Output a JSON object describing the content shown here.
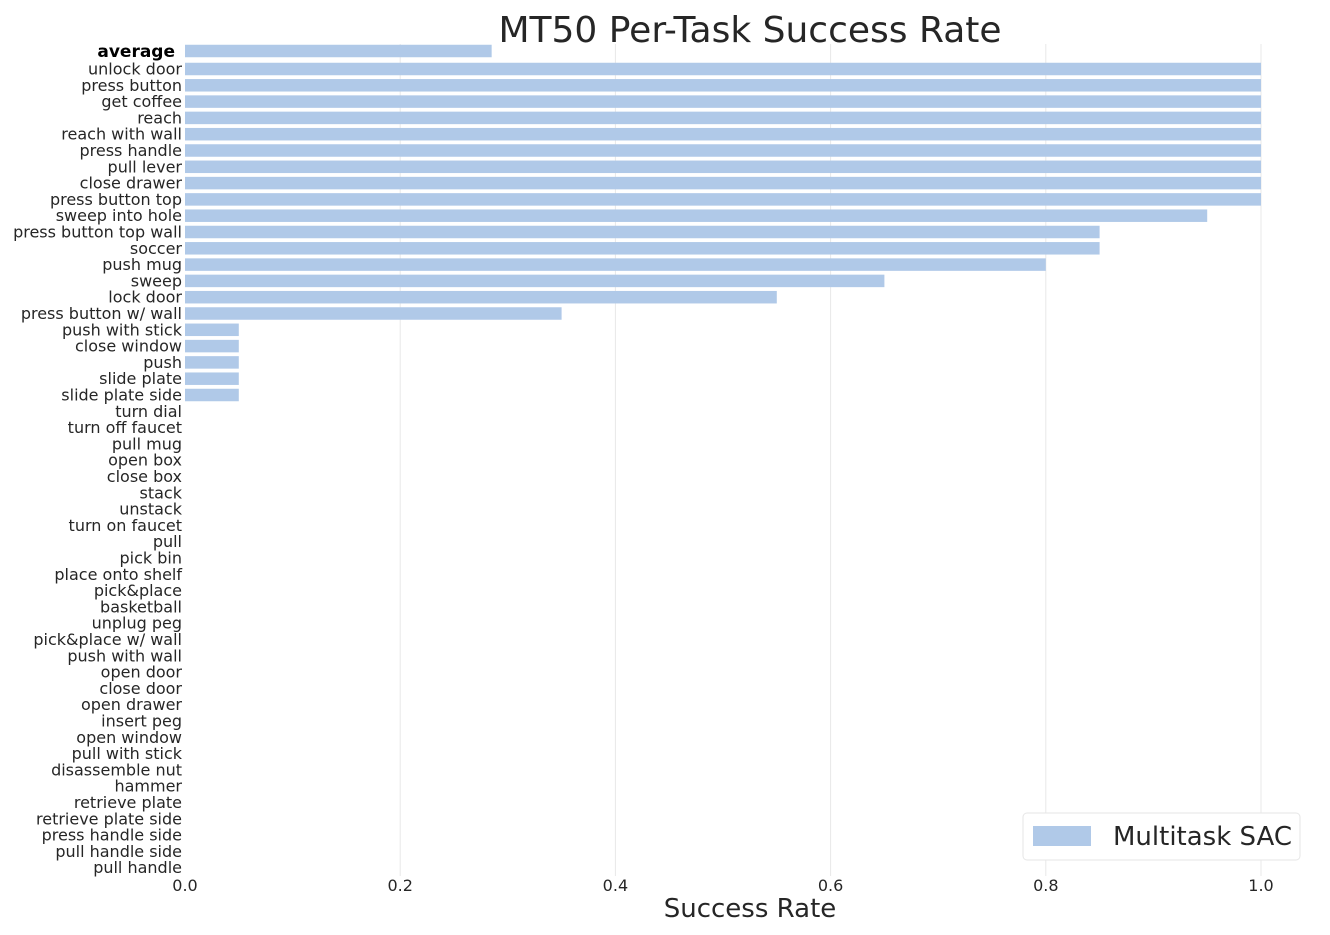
{
  "chart_data": {
    "type": "bar",
    "orientation": "horizontal",
    "title": "MT50 Per-Task Success Rate",
    "xlabel": "Success Rate",
    "ylabel": "",
    "xlim": [
      0,
      1.0
    ],
    "xticks": [
      "0.0",
      "0.2",
      "0.4",
      "0.6",
      "0.8",
      "1.0"
    ],
    "grid": "vertical",
    "legend_position": "bottom-right",
    "bar_color": "#b0c9e8",
    "average": {
      "label": "average",
      "value": 0.285
    },
    "series": [
      {
        "name": "Multitask SAC",
        "categories": [
          "unlock door",
          "press button",
          "get coffee",
          "reach",
          "reach with wall",
          "press handle",
          "pull lever",
          "close drawer",
          "press button top",
          "sweep into hole",
          "press button top wall",
          "soccer",
          "push mug",
          "sweep",
          "lock door",
          "press button w/ wall",
          "push with stick",
          "close window",
          "push",
          "slide plate",
          "slide plate side",
          "turn dial",
          "turn off faucet",
          "pull mug",
          "open box",
          "close box",
          "stack",
          "unstack",
          "turn on faucet",
          "pull",
          "pick bin",
          "place onto shelf",
          "pick&place",
          "basketball",
          "unplug peg",
          "pick&place w/ wall",
          "push with wall",
          "open door",
          "close door",
          "open drawer",
          "insert peg",
          "open window",
          "pull with stick",
          "disassemble nut",
          "hammer",
          "retrieve plate",
          "retrieve plate side",
          "press handle side",
          "pull handle side",
          "pull handle"
        ],
        "values": [
          1.0,
          1.0,
          1.0,
          1.0,
          1.0,
          1.0,
          1.0,
          1.0,
          1.0,
          0.95,
          0.85,
          0.85,
          0.8,
          0.65,
          0.55,
          0.35,
          0.05,
          0.05,
          0.05,
          0.05,
          0.05,
          0,
          0,
          0,
          0,
          0,
          0,
          0,
          0,
          0,
          0,
          0,
          0,
          0,
          0,
          0,
          0,
          0,
          0,
          0,
          0,
          0,
          0,
          0,
          0,
          0,
          0,
          0,
          0,
          0
        ]
      }
    ]
  }
}
